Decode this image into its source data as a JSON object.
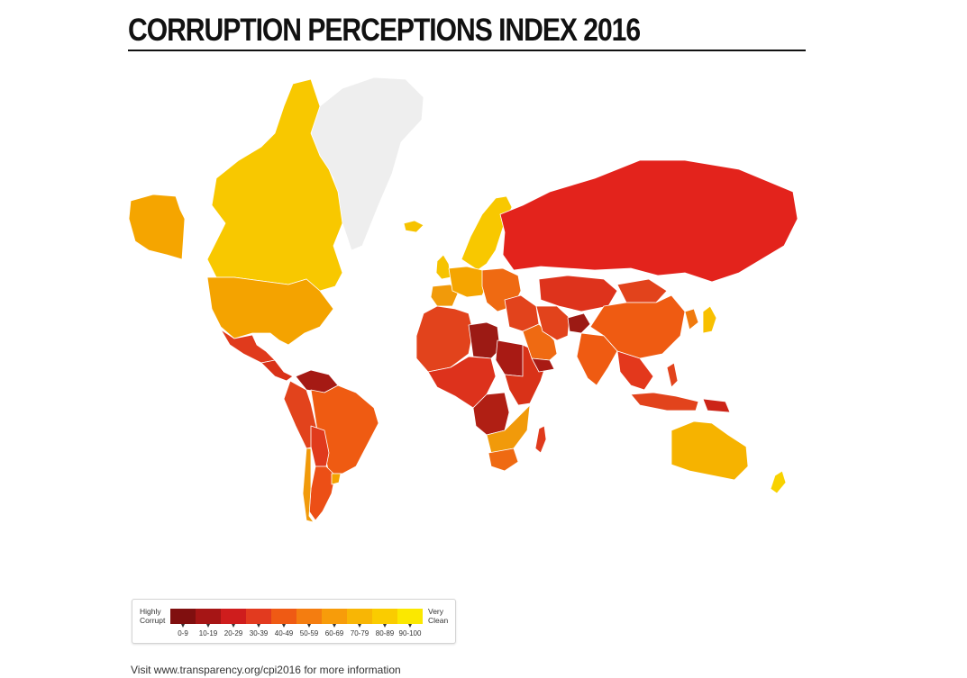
{
  "title": "CORRUPTION PERCEPTIONS INDEX 2016",
  "legend": {
    "low_line1": "Highly",
    "low_line2": "Corrupt",
    "high_line1": "Very",
    "high_line2": "Clean",
    "bins": [
      {
        "range": "0-9",
        "color": "#800f0f"
      },
      {
        "range": "10-19",
        "color": "#a61515"
      },
      {
        "range": "20-29",
        "color": "#cf1d1d"
      },
      {
        "range": "30-39",
        "color": "#e23a1f"
      },
      {
        "range": "40-49",
        "color": "#ef5a14"
      },
      {
        "range": "50-59",
        "color": "#f47d10"
      },
      {
        "range": "60-69",
        "color": "#f79c0a"
      },
      {
        "range": "70-79",
        "color": "#f8b605"
      },
      {
        "range": "80-89",
        "color": "#facc00"
      },
      {
        "range": "90-100",
        "color": "#fbe800"
      }
    ]
  },
  "regions": [
    {
      "name": "alaska",
      "color": "#f5a500"
    },
    {
      "name": "canada",
      "color": "#f8c800"
    },
    {
      "name": "greenland",
      "color": "#eeeeee"
    },
    {
      "name": "usa",
      "color": "#f4a300"
    },
    {
      "name": "mexico",
      "color": "#e03a1c"
    },
    {
      "name": "central-america",
      "color": "#d93218"
    },
    {
      "name": "venezuela",
      "color": "#a51a14"
    },
    {
      "name": "colombia-peru",
      "color": "#e2431c"
    },
    {
      "name": "brazil",
      "color": "#ef5b12"
    },
    {
      "name": "bolivia-paraguay",
      "color": "#e03a1c"
    },
    {
      "name": "argentina",
      "color": "#ec4f16"
    },
    {
      "name": "chile",
      "color": "#f19a0a"
    },
    {
      "name": "uruguay",
      "color": "#f4a300"
    },
    {
      "name": "iceland",
      "color": "#f6c300"
    },
    {
      "name": "uk-ireland",
      "color": "#f6c300"
    },
    {
      "name": "scandinavia",
      "color": "#f8c800"
    },
    {
      "name": "western-europe",
      "color": "#f5a500"
    },
    {
      "name": "iberia",
      "color": "#f19a0a"
    },
    {
      "name": "eastern-europe",
      "color": "#ef6a12"
    },
    {
      "name": "russia",
      "color": "#e3231c"
    },
    {
      "name": "north-africa",
      "color": "#e2431c"
    },
    {
      "name": "libya",
      "color": "#9c1a14"
    },
    {
      "name": "sudan",
      "color": "#a81a14"
    },
    {
      "name": "west-central-africa",
      "color": "#dd321c"
    },
    {
      "name": "east-africa",
      "color": "#d93218"
    },
    {
      "name": "angola-drc",
      "color": "#b01f14"
    },
    {
      "name": "southern-africa",
      "color": "#f19a0a"
    },
    {
      "name": "south-africa",
      "color": "#ef6a12"
    },
    {
      "name": "madagascar",
      "color": "#e03a1c"
    },
    {
      "name": "middle-east",
      "color": "#e2431c"
    },
    {
      "name": "arabia",
      "color": "#ef6a12"
    },
    {
      "name": "yemen",
      "color": "#a81a14"
    },
    {
      "name": "central-asia",
      "color": "#de331c"
    },
    {
      "name": "iran",
      "color": "#e2431c"
    },
    {
      "name": "afghanistan",
      "color": "#9c1a14"
    },
    {
      "name": "india",
      "color": "#ef5b12"
    },
    {
      "name": "china",
      "color": "#ef5b12"
    },
    {
      "name": "mongolia",
      "color": "#e2431c"
    },
    {
      "name": "korea",
      "color": "#f07a0e"
    },
    {
      "name": "japan",
      "color": "#f8c000"
    },
    {
      "name": "southeast-asia",
      "color": "#e3381c"
    },
    {
      "name": "indonesia",
      "color": "#e2431c"
    },
    {
      "name": "philippines",
      "color": "#e2431c"
    },
    {
      "name": "png",
      "color": "#cc2418"
    },
    {
      "name": "australia",
      "color": "#f6b300"
    },
    {
      "name": "new-zealand",
      "color": "#f8d200"
    }
  ],
  "footer": "Visit www.transparency.org/cpi2016 for more information"
}
